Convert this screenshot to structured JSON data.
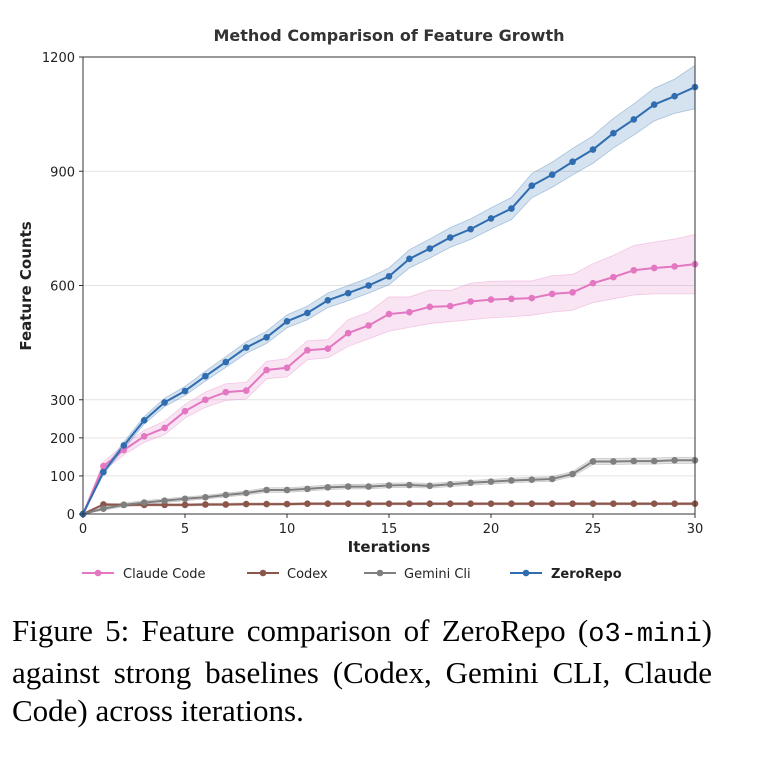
{
  "chart_data": {
    "type": "line",
    "title": "Method Comparison of Feature Growth",
    "xlabel": "Iterations",
    "ylabel": "Feature Counts",
    "xlim": [
      0,
      30
    ],
    "ylim": [
      0,
      1200
    ],
    "xticks": [
      0,
      5,
      10,
      15,
      20,
      25,
      30
    ],
    "yticks": [
      0,
      100,
      200,
      300,
      600,
      900,
      1200
    ],
    "x": [
      0,
      1,
      2,
      3,
      4,
      5,
      6,
      7,
      8,
      9,
      10,
      11,
      12,
      13,
      14,
      15,
      16,
      17,
      18,
      19,
      20,
      21,
      22,
      23,
      24,
      25,
      26,
      27,
      28,
      29,
      30
    ],
    "series": [
      {
        "name": "Claude Code",
        "color": "#e377c2",
        "bold": false,
        "values": [
          0,
          126,
          168,
          204,
          226,
          270,
          300,
          320,
          324,
          378,
          384,
          430,
          434,
          475,
          495,
          525,
          530,
          544,
          546,
          558,
          563,
          565,
          567,
          578,
          582,
          606,
          622,
          640,
          646,
          650,
          656
        ],
        "lower": [
          0,
          115,
          155,
          188,
          208,
          252,
          280,
          298,
          302,
          355,
          360,
          405,
          410,
          440,
          460,
          480,
          490,
          500,
          505,
          510,
          515,
          518,
          522,
          530,
          535,
          555,
          565,
          575,
          578,
          578,
          578
        ],
        "upper": [
          0,
          137,
          181,
          220,
          244,
          288,
          320,
          342,
          346,
          401,
          408,
          455,
          458,
          510,
          530,
          570,
          570,
          588,
          587,
          606,
          611,
          612,
          612,
          626,
          629,
          657,
          679,
          705,
          714,
          722,
          734
        ]
      },
      {
        "name": "Codex",
        "color": "#8c564b",
        "bold": false,
        "values": [
          0,
          25,
          24,
          24,
          24,
          24,
          25,
          25,
          26,
          26,
          26,
          27,
          27,
          27,
          27,
          27,
          27,
          27,
          27,
          27,
          27,
          27,
          27,
          27,
          27,
          27,
          27,
          27,
          27,
          27,
          27
        ],
        "lower": [
          0,
          22,
          21,
          21,
          21,
          21,
          22,
          22,
          23,
          23,
          23,
          24,
          24,
          24,
          24,
          24,
          24,
          24,
          24,
          24,
          24,
          24,
          24,
          24,
          24,
          24,
          24,
          24,
          24,
          24,
          24
        ],
        "upper": [
          0,
          28,
          27,
          27,
          27,
          27,
          28,
          28,
          29,
          29,
          29,
          30,
          30,
          30,
          30,
          30,
          30,
          30,
          30,
          30,
          30,
          30,
          30,
          30,
          30,
          30,
          30,
          30,
          30,
          30,
          30
        ]
      },
      {
        "name": "Gemini Cli",
        "color": "#7f7f7f",
        "bold": false,
        "values": [
          0,
          14,
          24,
          30,
          35,
          40,
          44,
          50,
          55,
          63,
          63,
          66,
          70,
          72,
          72,
          75,
          76,
          74,
          78,
          82,
          85,
          88,
          90,
          92,
          105,
          138,
          138,
          139,
          139,
          141,
          141
        ],
        "lower": [
          0,
          10,
          19,
          25,
          30,
          35,
          39,
          45,
          50,
          57,
          57,
          60,
          64,
          66,
          66,
          69,
          70,
          68,
          72,
          76,
          79,
          82,
          84,
          86,
          98,
          130,
          130,
          131,
          131,
          133,
          133
        ],
        "upper": [
          0,
          18,
          29,
          35,
          40,
          45,
          49,
          55,
          60,
          69,
          69,
          72,
          76,
          78,
          78,
          81,
          82,
          80,
          84,
          88,
          91,
          94,
          96,
          98,
          112,
          146,
          146,
          147,
          147,
          149,
          149
        ]
      },
      {
        "name": "ZeroRepo",
        "color": "#2f6db0",
        "bold": true,
        "values": [
          0,
          110,
          180,
          246,
          293,
          323,
          362,
          399,
          437,
          464,
          506,
          528,
          561,
          580,
          600,
          624,
          670,
          697,
          726,
          748,
          776,
          802,
          862,
          891,
          925,
          957,
          1000,
          1036,
          1075,
          1097,
          1121
        ],
        "lower": [
          0,
          104,
          171,
          236,
          282,
          311,
          349,
          385,
          422,
          448,
          489,
          510,
          542,
          560,
          580,
          602,
          646,
          672,
          700,
          721,
          748,
          773,
          830,
          858,
          890,
          921,
          961,
          995,
          1032,
          1052,
          1064
        ],
        "upper": [
          0,
          116,
          189,
          256,
          304,
          335,
          375,
          413,
          452,
          480,
          523,
          546,
          580,
          600,
          620,
          646,
          694,
          722,
          752,
          775,
          804,
          831,
          894,
          924,
          960,
          993,
          1039,
          1077,
          1118,
          1142,
          1178
        ]
      }
    ]
  },
  "caption": {
    "lead": "Figure 5:  Feature comparison of ZeroRepo",
    "model": "o3-mini",
    "rest": " against strong baselines (Codex, Gemini CLI, Claude Code) across iterations."
  }
}
